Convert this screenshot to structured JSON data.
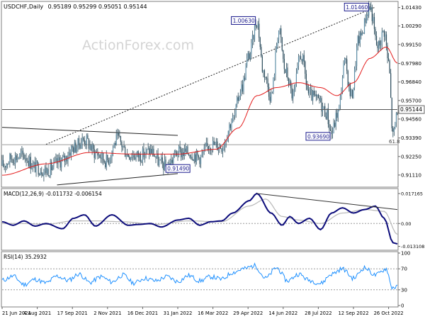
{
  "chart_data": [
    {
      "type": "candlestick",
      "panel": "price",
      "symbol_label": "USDCHF,Daily",
      "ohlc_label": "0.95189 0.95299 0.95051 0.95144",
      "watermark": "ActionForex.com",
      "y_ticks": [
        0.9111,
        0.9225,
        0.9339,
        0.9456,
        0.957,
        0.9684,
        0.9798,
        0.9915,
        1.0029,
        1.0143
      ],
      "y_tick_labels": [
        "0.91110",
        "0.92250",
        "0.93390",
        "0.94560",
        "0.95700",
        "0.96840",
        "0.97980",
        "0.99150",
        "1.00290",
        "1.01430"
      ],
      "ylim": [
        0.9045,
        1.0172
      ],
      "current_price": 0.95144,
      "current_price_label": "0.95144",
      "x_count": 360,
      "x_tick_labels": [
        "21 Jun 2021",
        "4 Aug 2021",
        "17 Sep 2021",
        "2 Nov 2021",
        "16 Dec 2021",
        "31 Jan 2022",
        "16 Mar 2022",
        "29 Apr 2022",
        "14 Jun 2022",
        "28 Jul 2022",
        "12 Sep 2022",
        "26 Oct 2022"
      ],
      "x_tick_index": [
        0,
        32,
        64,
        96,
        128,
        160,
        192,
        224,
        256,
        288,
        320,
        352
      ],
      "annotations": [
        {
          "text": "1.01460",
          "x": 335,
          "y": 1.0146
        },
        {
          "text": "1.00630",
          "x": 232,
          "y": 1.0063
        },
        {
          "text": "0.93690",
          "x": 300,
          "y": 0.9369
        },
        {
          "text": "0.91490",
          "x": 153,
          "y": 0.9149
        }
      ],
      "fib_level": {
        "label": "61.8",
        "y": 0.9298
      },
      "trendlines": [
        {
          "x1": 0,
          "y1": 0.9405,
          "x2": 160,
          "y2": 0.9355
        },
        {
          "x1": 50,
          "y1": 0.905,
          "x2": 160,
          "y2": 0.912
        },
        {
          "x1": 40,
          "y1": 0.93,
          "x2": 340,
          "y2": 1.0146
        }
      ],
      "close_path": [
        [
          0,
          0.917
        ],
        [
          10,
          0.922
        ],
        [
          20,
          0.923
        ],
        [
          30,
          0.916
        ],
        [
          40,
          0.914
        ],
        [
          55,
          0.92
        ],
        [
          65,
          0.928
        ],
        [
          75,
          0.933
        ],
        [
          85,
          0.925
        ],
        [
          95,
          0.92
        ],
        [
          105,
          0.933
        ],
        [
          115,
          0.924
        ],
        [
          125,
          0.923
        ],
        [
          135,
          0.926
        ],
        [
          145,
          0.918
        ],
        [
          150,
          0.916
        ],
        [
          160,
          0.925
        ],
        [
          170,
          0.925
        ],
        [
          180,
          0.922
        ],
        [
          190,
          0.93
        ],
        [
          200,
          0.929
        ],
        [
          210,
          0.945
        ],
        [
          218,
          0.965
        ],
        [
          225,
          0.985
        ],
        [
          232,
          1.006
        ],
        [
          238,
          0.975
        ],
        [
          245,
          0.96
        ],
        [
          252,
          1.0
        ],
        [
          258,
          0.975
        ],
        [
          265,
          0.96
        ],
        [
          272,
          0.985
        ],
        [
          280,
          0.96
        ],
        [
          288,
          0.957
        ],
        [
          295,
          0.95
        ],
        [
          300,
          0.9369
        ],
        [
          306,
          0.95
        ],
        [
          312,
          0.98
        ],
        [
          318,
          0.96
        ],
        [
          325,
          0.995
        ],
        [
          335,
          1.0146
        ],
        [
          342,
          0.99
        ],
        [
          348,
          1.0
        ],
        [
          352,
          0.98
        ],
        [
          356,
          0.935
        ],
        [
          360,
          0.9514
        ]
      ],
      "ma_path": [
        [
          0,
          0.911
        ],
        [
          40,
          0.918
        ],
        [
          80,
          0.925
        ],
        [
          120,
          0.924
        ],
        [
          160,
          0.924
        ],
        [
          195,
          0.927
        ],
        [
          215,
          0.94
        ],
        [
          232,
          0.96
        ],
        [
          250,
          0.965
        ],
        [
          270,
          0.968
        ],
        [
          290,
          0.965
        ],
        [
          305,
          0.96
        ],
        [
          320,
          0.968
        ],
        [
          335,
          0.983
        ],
        [
          350,
          0.99
        ],
        [
          360,
          0.98
        ]
      ]
    },
    {
      "type": "line",
      "panel": "macd",
      "label": "MACD(12,26,9) -0.011732 -0.006154",
      "y_ticks": [
        0.017165,
        0.0,
        -0.013108
      ],
      "y_tick_labels": [
        "0.017165",
        "0.00",
        "-0.013108"
      ],
      "ylim": [
        -0.0145,
        0.0188
      ],
      "macd_path": [
        [
          0,
          0.001
        ],
        [
          10,
          -0.001
        ],
        [
          20,
          0.0015
        ],
        [
          30,
          -0.0015
        ],
        [
          40,
          0.0
        ],
        [
          55,
          -0.003
        ],
        [
          65,
          0.003
        ],
        [
          75,
          0.005
        ],
        [
          85,
          -0.0015
        ],
        [
          100,
          0.005
        ],
        [
          115,
          -0.001
        ],
        [
          125,
          -0.0005
        ],
        [
          135,
          0.0
        ],
        [
          145,
          -0.002
        ],
        [
          160,
          0.002
        ],
        [
          170,
          0.003
        ],
        [
          180,
          -0.001
        ],
        [
          190,
          0.001
        ],
        [
          200,
          0.0015
        ],
        [
          210,
          0.006
        ],
        [
          225,
          0.013
        ],
        [
          232,
          0.0172
        ],
        [
          245,
          0.006
        ],
        [
          255,
          -0.001
        ],
        [
          262,
          0.004
        ],
        [
          270,
          0.0
        ],
        [
          280,
          0.003
        ],
        [
          290,
          -0.0035
        ],
        [
          300,
          0.006
        ],
        [
          310,
          0.009
        ],
        [
          320,
          0.006
        ],
        [
          330,
          0.008
        ],
        [
          340,
          0.01
        ],
        [
          348,
          0.003
        ],
        [
          356,
          -0.011
        ],
        [
          360,
          -0.0117
        ]
      ],
      "signal_path": [
        [
          0,
          0.0
        ],
        [
          20,
          0.0
        ],
        [
          40,
          -0.0005
        ],
        [
          65,
          0.0015
        ],
        [
          85,
          0.0015
        ],
        [
          110,
          0.001
        ],
        [
          140,
          -0.0005
        ],
        [
          170,
          0.0015
        ],
        [
          200,
          0.001
        ],
        [
          225,
          0.01
        ],
        [
          240,
          0.014
        ],
        [
          255,
          0.004
        ],
        [
          270,
          0.002
        ],
        [
          290,
          0.0
        ],
        [
          310,
          0.006
        ],
        [
          330,
          0.008
        ],
        [
          348,
          0.007
        ],
        [
          360,
          -0.0062
        ]
      ],
      "trendline": {
        "x1": 232,
        "y1": 0.0172,
        "x2": 360,
        "y2": 0.008
      }
    },
    {
      "type": "line",
      "panel": "rsi",
      "label": "RSI(14) 35.2932",
      "y_ticks": [
        100,
        70,
        30,
        0
      ],
      "y_tick_labels": [
        "100",
        "70",
        "30",
        "0"
      ],
      "ylim": [
        0,
        100
      ],
      "levels": [
        70,
        30
      ],
      "rsi_path": [
        [
          0,
          48
        ],
        [
          10,
          56
        ],
        [
          20,
          40
        ],
        [
          30,
          50
        ],
        [
          40,
          43
        ],
        [
          50,
          56
        ],
        [
          60,
          48
        ],
        [
          70,
          60
        ],
        [
          80,
          44
        ],
        [
          90,
          55
        ],
        [
          100,
          45
        ],
        [
          110,
          58
        ],
        [
          120,
          43
        ],
        [
          130,
          52
        ],
        [
          140,
          47
        ],
        [
          150,
          55
        ],
        [
          160,
          46
        ],
        [
          170,
          57
        ],
        [
          180,
          47
        ],
        [
          190,
          55
        ],
        [
          200,
          50
        ],
        [
          210,
          63
        ],
        [
          220,
          70
        ],
        [
          230,
          76
        ],
        [
          240,
          52
        ],
        [
          250,
          72
        ],
        [
          260,
          47
        ],
        [
          270,
          60
        ],
        [
          280,
          48
        ],
        [
          290,
          42
        ],
        [
          300,
          60
        ],
        [
          310,
          70
        ],
        [
          320,
          52
        ],
        [
          330,
          72
        ],
        [
          340,
          58
        ],
        [
          350,
          70
        ],
        [
          355,
          35
        ],
        [
          360,
          35
        ]
      ]
    }
  ]
}
